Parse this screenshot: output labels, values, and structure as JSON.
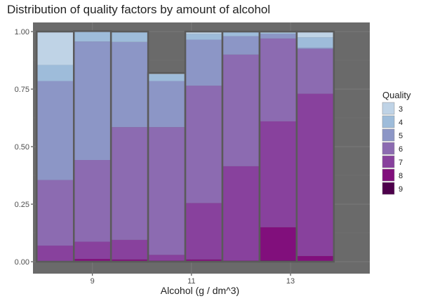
{
  "chart_data": {
    "type": "bar",
    "stacked": true,
    "normalized": true,
    "title": "Distribution of quality factors by amount of alcohol",
    "xlabel": "Alcohol (g / dm^3)",
    "ylabel": "",
    "ylim": [
      0,
      1
    ],
    "xlim": [
      7.8,
      14.6
    ],
    "x_ticks": [
      "9",
      "11",
      "13"
    ],
    "x_tick_values": [
      9,
      11,
      13
    ],
    "y_ticks": [
      "0.00",
      "0.25",
      "0.50",
      "0.75",
      "1.00"
    ],
    "y_tick_values": [
      0,
      0.25,
      0.5,
      0.75,
      1.0
    ],
    "grid": true,
    "panel_background": "#6a6a6a",
    "legend": {
      "title": "Quality",
      "position": "right"
    },
    "bin_centers": [
      8.25,
      9.0,
      9.75,
      10.5,
      11.25,
      12.0,
      12.75,
      13.5
    ],
    "bin_width": 0.75,
    "categories": [
      "8.25",
      "9.0",
      "9.75",
      "10.5",
      "11.25",
      "12.0",
      "12.75",
      "13.5"
    ],
    "series": [
      {
        "name": "9",
        "color": "#4d004b",
        "values": [
          0,
          0,
          0,
          0,
          0,
          0,
          0.005,
          0
        ]
      },
      {
        "name": "8",
        "color": "#810f7c",
        "values": [
          0,
          0.012,
          0.01,
          0.005,
          0.01,
          0.005,
          0.145,
          0.025
        ]
      },
      {
        "name": "7",
        "color": "#88419d",
        "values": [
          0.07,
          0.075,
          0.085,
          0.025,
          0.245,
          0.41,
          0.46,
          0.705
        ]
      },
      {
        "name": "6",
        "color": "#8c6bb1",
        "values": [
          0.285,
          0.355,
          0.49,
          0.555,
          0.51,
          0.485,
          0.36,
          0.195
        ]
      },
      {
        "name": "5",
        "color": "#8c96c6",
        "values": [
          0.43,
          0.515,
          0.37,
          0.2,
          0.2,
          0.08,
          0.02,
          0.005
        ]
      },
      {
        "name": "4",
        "color": "#9ebcda",
        "values": [
          0.07,
          0.045,
          0.045,
          0.03,
          0.025,
          0.02,
          0.005,
          0.045
        ]
      },
      {
        "name": "3",
        "color": "#bfd3e6",
        "values": [
          0.145,
          0,
          0,
          0.005,
          0.01,
          0,
          0.005,
          0.025
        ]
      }
    ]
  }
}
